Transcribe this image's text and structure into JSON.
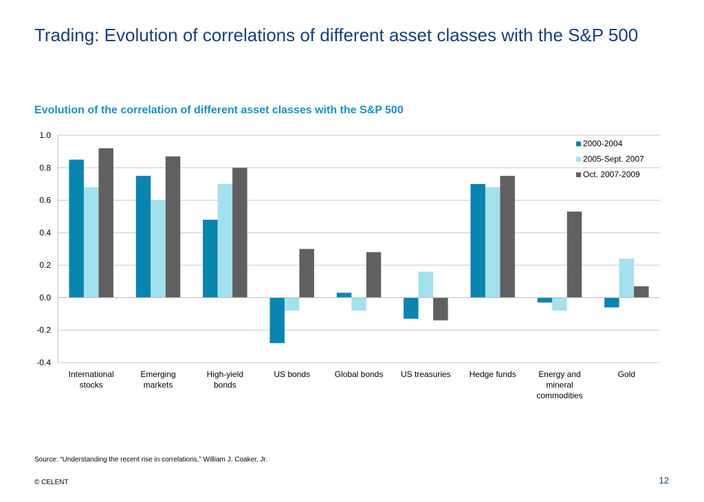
{
  "slide": {
    "title": "Trading:  Evolution of correlations of different asset classes with the S&P 500",
    "source": "Source: “Understanding the recent rise in correlations,” William J. Coaker, Jr.",
    "copyright": "© CELENT",
    "page_number": "12"
  },
  "chart_data": {
    "type": "bar",
    "title": "Evolution of the correlation of different asset classes with the S&P 500",
    "xlabel": "",
    "ylabel": "",
    "ylim": [
      -0.4,
      1.0
    ],
    "yticks": [
      "1.0",
      "0.8",
      "0.6",
      "0.4",
      "0.2",
      "0.0",
      "-0.2",
      "-0.4"
    ],
    "grid": true,
    "legend_position": "top-right",
    "categories": [
      [
        "International",
        "stocks"
      ],
      [
        "Emerging",
        "markets"
      ],
      [
        "High-yield",
        "bonds"
      ],
      [
        "US bonds"
      ],
      [
        "Global bonds"
      ],
      [
        "US treasuries"
      ],
      [
        "Hedge funds"
      ],
      [
        "Energy and",
        "mineral",
        "commodities"
      ],
      [
        "Gold"
      ]
    ],
    "series": [
      {
        "name": "2000-2004",
        "color": "#0b84b0",
        "values": [
          0.85,
          0.75,
          0.48,
          -0.28,
          0.03,
          -0.13,
          0.7,
          -0.03,
          -0.06
        ]
      },
      {
        "name": "2005-Sept. 2007",
        "color": "#a3e1ee",
        "values": [
          0.68,
          0.6,
          0.7,
          -0.08,
          -0.08,
          0.16,
          0.68,
          -0.08,
          0.24
        ]
      },
      {
        "name": "Oct. 2007-2009",
        "color": "#606060",
        "values": [
          0.92,
          0.87,
          0.8,
          0.3,
          0.28,
          -0.14,
          0.75,
          0.53,
          0.07
        ]
      }
    ]
  }
}
